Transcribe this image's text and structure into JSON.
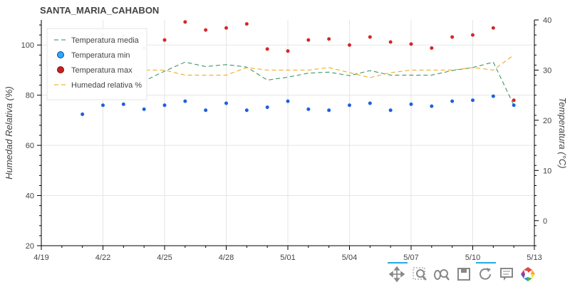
{
  "chart_data": {
    "type": "line",
    "title": "SANTA_MARIA_CAHABON",
    "ylabel_left": "Humedad Relativa (%)",
    "ylabel_right": "Temperatura (°C)",
    "ylim_left": [
      20,
      110
    ],
    "ylim_right": [
      -5,
      40
    ],
    "xlim": [
      "2019-04-19",
      "2019-05-13"
    ],
    "x_ticks": [
      "4/19",
      "4/22",
      "4/25",
      "4/28",
      "5/01",
      "5/04",
      "5/07",
      "5/10",
      "5/13"
    ],
    "x_tick_dates": [
      "2019-04-19",
      "2019-04-22",
      "2019-04-25",
      "2019-04-28",
      "2019-05-01",
      "2019-05-04",
      "2019-05-07",
      "2019-05-10",
      "2019-05-13"
    ],
    "y_ticks_left": [
      "20",
      "40",
      "60",
      "80",
      "100"
    ],
    "y_ticks_right": [
      "0",
      "10",
      "20",
      "30",
      "40"
    ],
    "y_tick_values_left": [
      20,
      40,
      60,
      80,
      100
    ],
    "y_tick_values_right": [
      0,
      10,
      20,
      30,
      40
    ],
    "grid": true,
    "legend_position": "top-left",
    "dates": [
      "2019-04-21",
      "2019-04-22",
      "2019-04-23",
      "2019-04-24",
      "2019-04-25",
      "2019-04-26",
      "2019-04-27",
      "2019-04-28",
      "2019-04-29",
      "2019-04-30",
      "2019-05-01",
      "2019-05-02",
      "2019-05-03",
      "2019-05-04",
      "2019-05-05",
      "2019-05-06",
      "2019-05-07",
      "2019-05-08",
      "2019-05-09",
      "2019-05-10",
      "2019-05-11",
      "2019-05-12"
    ],
    "series": [
      {
        "name": "Temperatura media",
        "axis": "right",
        "kind": "line",
        "dash": "dashed",
        "color": "#2e8b57",
        "values": [
          30.0,
          30.3,
          30.6,
          27.8,
          29.8,
          31.6,
          30.7,
          31.1,
          30.6,
          28.0,
          28.6,
          29.4,
          29.6,
          28.9,
          29.9,
          29.0,
          29.0,
          29.0,
          29.9,
          30.5,
          31.6,
          23.0
        ]
      },
      {
        "name": "Temperatura min",
        "axis": "right",
        "kind": "scatter",
        "color": "#1f5fe0",
        "values": [
          21.2,
          23.0,
          23.2,
          22.2,
          23.0,
          23.8,
          22.0,
          23.4,
          22.0,
          22.6,
          23.8,
          22.2,
          22.0,
          23.0,
          23.4,
          22.0,
          23.2,
          22.8,
          23.8,
          24.0,
          24.8,
          23.0
        ]
      },
      {
        "name": "Temperatura max",
        "axis": "right",
        "kind": "scatter",
        "color": "#d62728",
        "values": [
          36.0,
          37.0,
          36.8,
          34.4,
          36.0,
          39.6,
          38.0,
          38.4,
          39.2,
          34.2,
          33.8,
          36.0,
          36.2,
          35.0,
          36.6,
          35.6,
          35.2,
          34.4,
          36.6,
          37.0,
          38.4,
          24.0
        ]
      },
      {
        "name": "Humedad relativa %",
        "axis": "left",
        "kind": "line",
        "dash": "dashed",
        "color": "#f0a30a",
        "values": [
          86.0,
          88.0,
          89.0,
          90.0,
          90.0,
          88.0,
          88.0,
          88.0,
          91.0,
          90.0,
          90.0,
          90.0,
          91.0,
          89.0,
          87.0,
          89.0,
          90.0,
          90.0,
          90.0,
          91.0,
          90.0,
          96.0
        ]
      }
    ]
  },
  "toolbar": {
    "tools": [
      "pan-tool-icon",
      "box-zoom-tool-icon",
      "wheel-zoom-tool-icon",
      "save-tool-icon",
      "reset-tool-icon",
      "hover-tool-icon",
      "bokeh-logo-icon"
    ]
  }
}
